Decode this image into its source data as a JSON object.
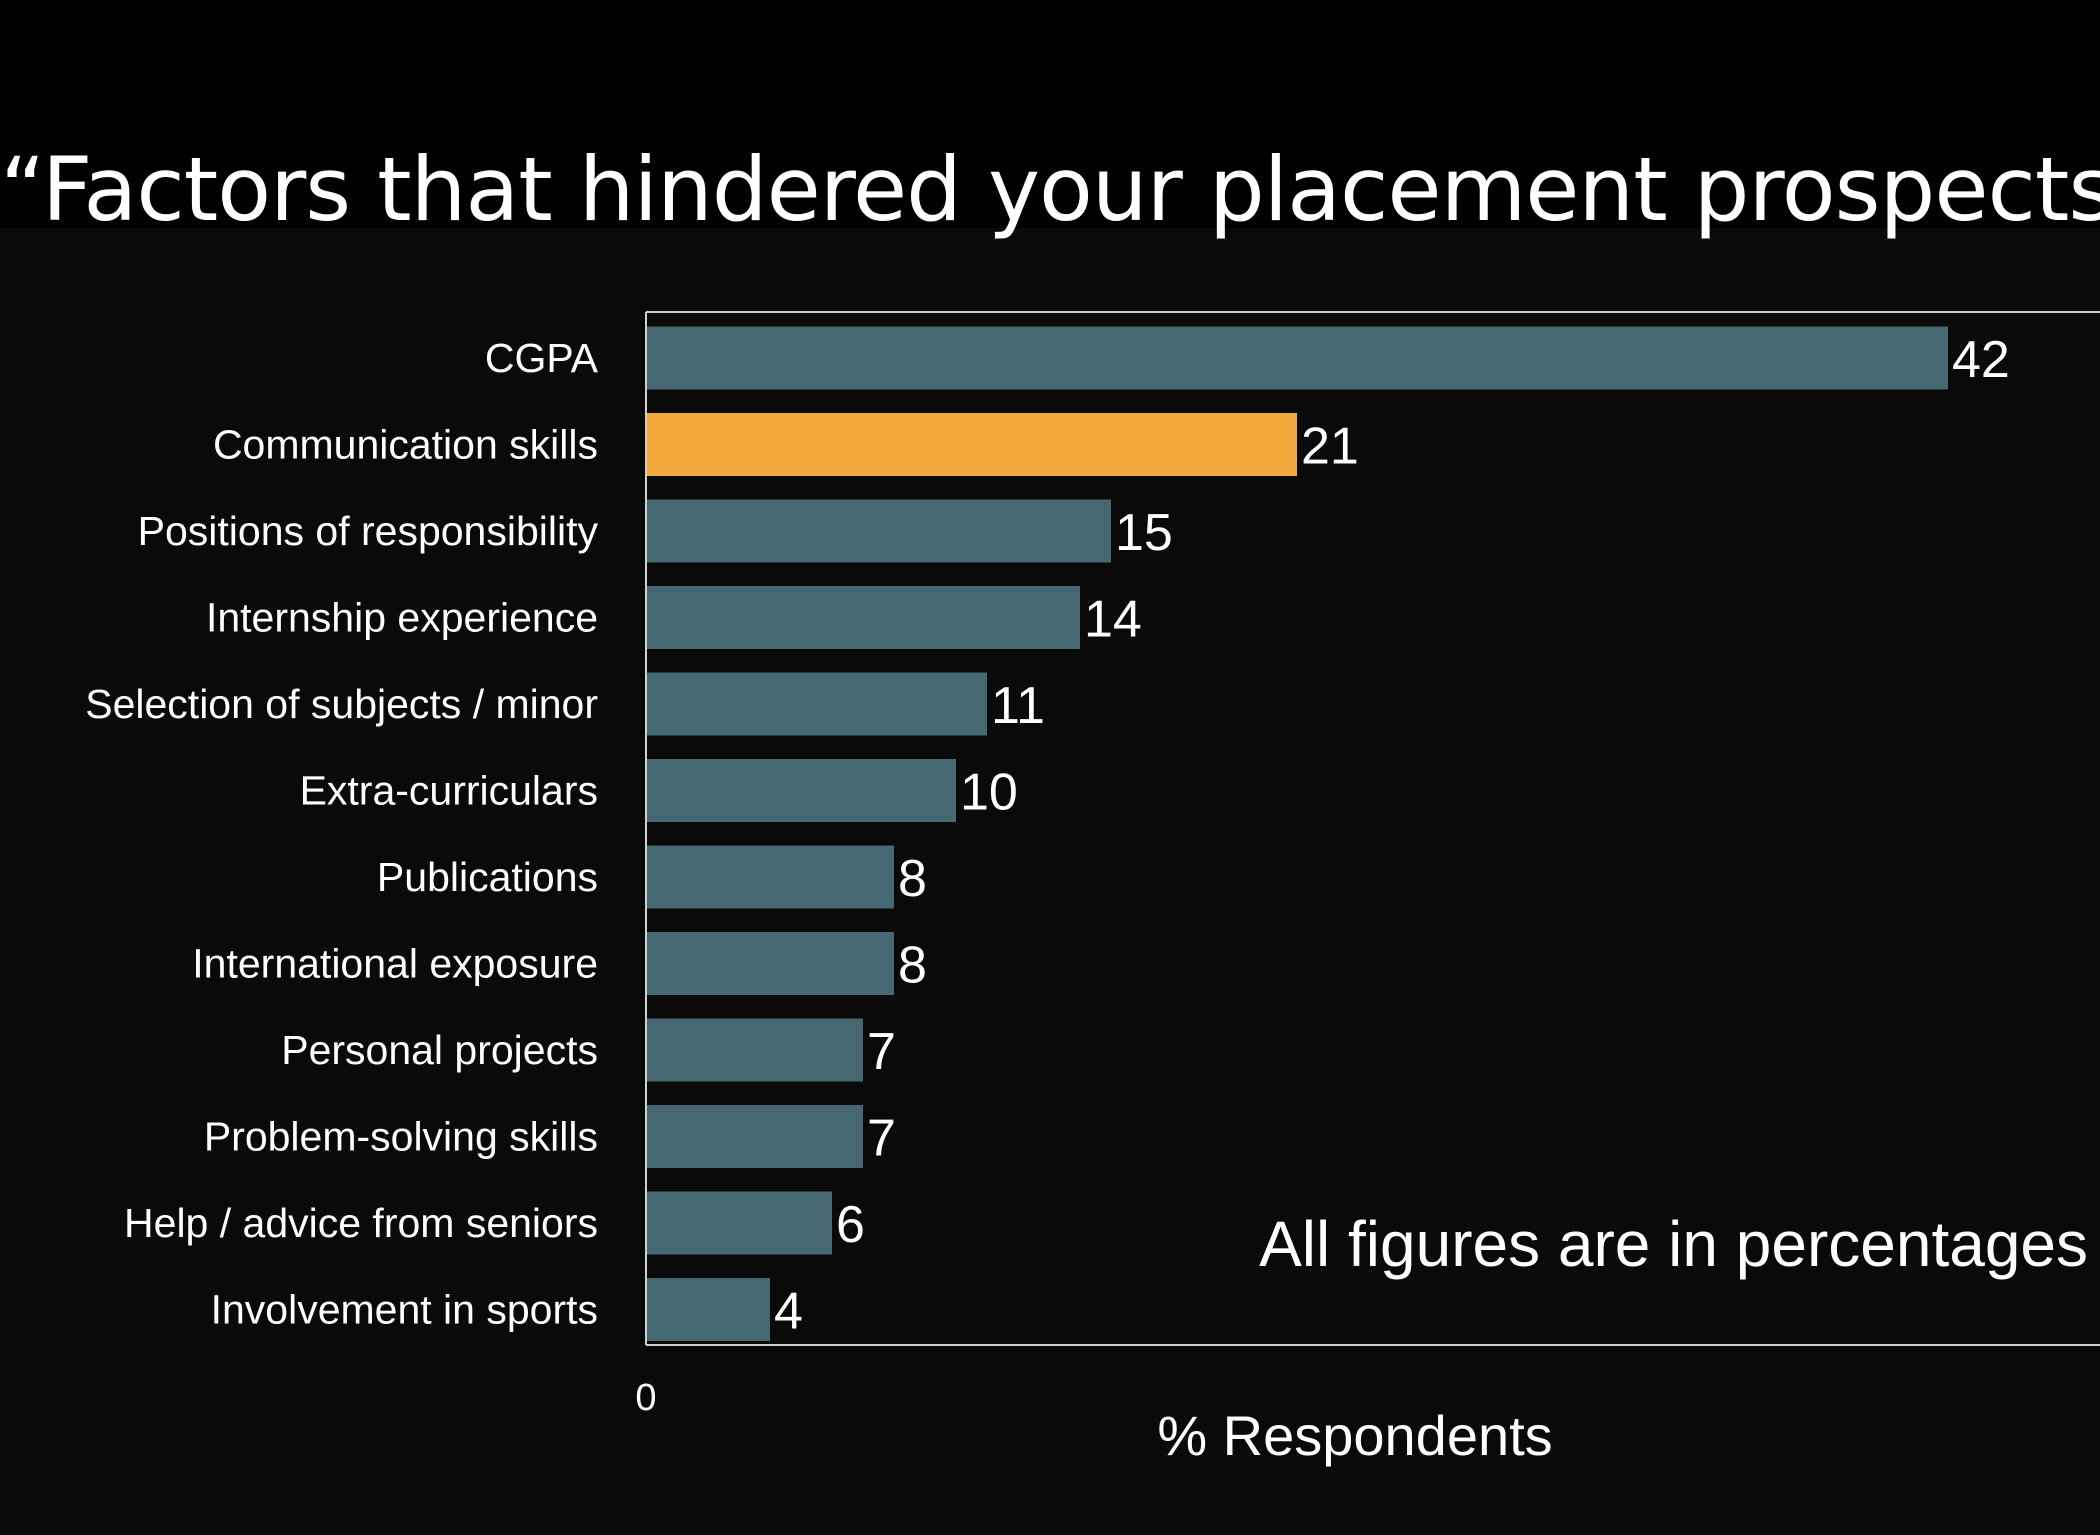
{
  "chart_data": {
    "type": "bar",
    "orientation": "horizontal",
    "title": "“Factors that hindered your placement prospects”",
    "xlabel": "% Respondents",
    "ylabel": "",
    "xlim": [
      0,
      42
    ],
    "x_ticks": [
      "0"
    ],
    "note": "All figures are in percentages",
    "categories": [
      "CGPA",
      "Communication skills",
      "Positions of responsibility",
      "Internship experience",
      "Selection of subjects / minor",
      "Extra-curriculars",
      "Publications",
      "International exposure",
      "Personal projects",
      "Problem-solving skills",
      "Help / advice from seniors",
      "Involvement in sports"
    ],
    "values": [
      42,
      21,
      15,
      14,
      11,
      10,
      8,
      8,
      7,
      7,
      6,
      4
    ],
    "highlight_category": "Communication skills",
    "bar_color": "#456872",
    "highlight_color": "#f2a83a",
    "grid": false,
    "legend": "none"
  }
}
